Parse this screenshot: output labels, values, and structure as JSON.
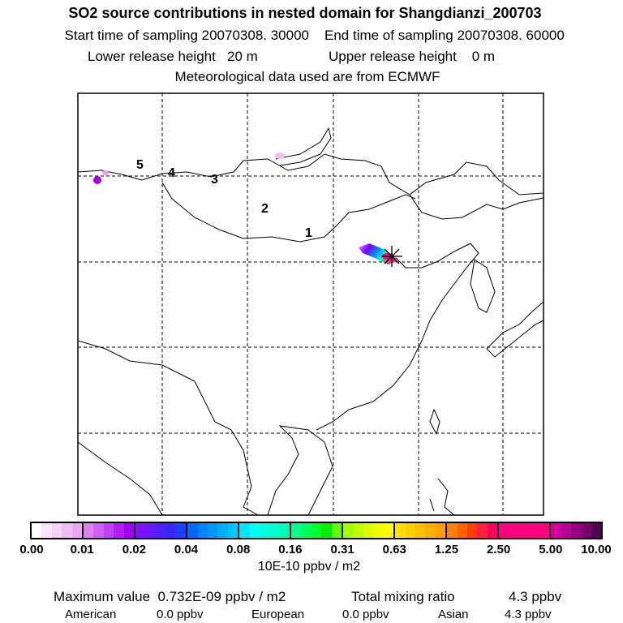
{
  "header": {
    "title": "SO2 source contributions in nested domain for Shangdianzi_200703",
    "start_label": "Start time of sampling 20070308. 30000",
    "end_label": "End time of sampling 20070308. 60000",
    "lower_label": "Lower release height   20 m",
    "upper_label": "Upper release height    0 m",
    "met_label": "Meteorological data used are from ECMWF"
  },
  "map": {
    "region_labels": [
      "1",
      "2",
      "3",
      "4",
      "5"
    ],
    "station_marker": "asterisk-cross-icon"
  },
  "colorbar": {
    "ticks": [
      "0.00",
      "0.01",
      "0.02",
      "0.04",
      "0.08",
      "0.16",
      "0.31",
      "0.63",
      "1.25",
      "2.50",
      "5.00",
      "10.00"
    ],
    "unit": "10E-10 ppbv / m2",
    "colors": [
      "#ffffff",
      "#fbe4fb",
      "#f6d0f6",
      "#f0bcf4",
      "#eaa8f2",
      "#de80f2",
      "#d060f2",
      "#c040f4",
      "#b020f6",
      "#a000f4",
      "#8010ff",
      "#6a18ff",
      "#5020ff",
      "#3828ff",
      "#1840ff",
      "#0068ff",
      "#0084ff",
      "#0098ff",
      "#00b0ff",
      "#00c8ff",
      "#00e8ff",
      "#00fff4",
      "#00ffe0",
      "#00ffcc",
      "#00ffb4",
      "#00ff90",
      "#00ff60",
      "#00ff30",
      "#00f000",
      "#60ff00",
      "#a0ff00",
      "#c0ff00",
      "#d8ff00",
      "#eeff00",
      "#ffff00",
      "#ffe000",
      "#ffd000",
      "#ffc000",
      "#ffb000",
      "#ffa000",
      "#ff8000",
      "#ff6000",
      "#ff4000",
      "#ff2040",
      "#ff0060",
      "#ff0080",
      "#ff0080",
      "#ff0080",
      "#ff0080",
      "#ff0080",
      "#d000a0",
      "#b80094",
      "#980084",
      "#780068",
      "#500050"
    ]
  },
  "footer": {
    "max_label": "Maximum value  0.732E-09 ppbv / m2",
    "total_label": "Total mixing ratio",
    "total_value": "4.3 ppbv",
    "american_label": "American",
    "american_value": "0.0 ppbv",
    "european_label": "European",
    "european_value": "0.0 ppbv",
    "asian_label": "Asian",
    "asian_value": "4.3 ppbv"
  }
}
